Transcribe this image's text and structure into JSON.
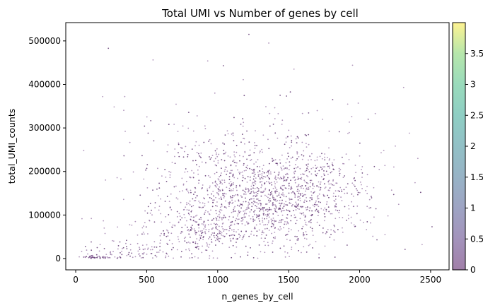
{
  "chart_data": {
    "type": "scatter",
    "title": "Total UMI vs Number of genes by cell",
    "xlabel": "n_genes_by_cell",
    "ylabel": "total_UMI_counts",
    "xlim": [
      -70,
      2630
    ],
    "ylim": [
      -26000,
      542000
    ],
    "xticks": [
      0,
      500,
      1000,
      1500,
      2000,
      2500
    ],
    "xtick_labels": [
      "0",
      "500",
      "1000",
      "1500",
      "2000",
      "2500"
    ],
    "yticks": [
      0,
      100000,
      200000,
      300000,
      400000,
      500000
    ],
    "ytick_labels": [
      "0",
      "100000",
      "200000",
      "300000",
      "400000",
      "500000"
    ],
    "grid": false,
    "colorbar": {
      "colormap": "viridis",
      "alpha": 0.5,
      "range": [
        0,
        4
      ],
      "ticks": [
        0,
        0.5,
        1,
        1.5,
        2,
        2.5,
        3,
        3.5
      ],
      "tick_labels": [
        "0",
        "0.5",
        "1",
        "1.5",
        "2",
        "2.5",
        "3",
        "3.5"
      ]
    },
    "point_color": "#7b4f8e",
    "outliers": [
      {
        "x": 230,
        "y": 483000
      },
      {
        "x": 1220,
        "y": 515000
      },
      {
        "x": 1360,
        "y": 495000
      },
      {
        "x": 190,
        "y": 372000
      },
      {
        "x": 930,
        "y": 454000
      },
      {
        "x": 1040,
        "y": 443000
      },
      {
        "x": 1950,
        "y": 444000
      },
      {
        "x": 1180,
        "y": 411000
      },
      {
        "x": 2310,
        "y": 393000
      },
      {
        "x": 1990,
        "y": 357000
      },
      {
        "x": 2110,
        "y": 333000
      },
      {
        "x": 510,
        "y": 288000
      },
      {
        "x": 2350,
        "y": 288000
      },
      {
        "x": 2170,
        "y": 248000
      },
      {
        "x": 2410,
        "y": 230000
      },
      {
        "x": 2430,
        "y": 152000
      },
      {
        "x": 2510,
        "y": 73000
      },
      {
        "x": 2320,
        "y": 21000
      },
      {
        "x": 2440,
        "y": 32000
      },
      {
        "x": 340,
        "y": 236000
      },
      {
        "x": 590,
        "y": 120000
      },
      {
        "x": 420,
        "y": 85000
      },
      {
        "x": 110,
        "y": 92000
      },
      {
        "x": 2240,
        "y": 147000
      },
      {
        "x": 980,
        "y": 380000
      },
      {
        "x": 1440,
        "y": 375000
      },
      {
        "x": 1810,
        "y": 365000
      },
      {
        "x": 2060,
        "y": 320000
      }
    ],
    "clusters": [
      {
        "n": 850,
        "mx": 1340,
        "sx": 280,
        "my": 130000,
        "sy": 55000
      },
      {
        "n": 420,
        "mx": 1100,
        "sx": 360,
        "my": 175000,
        "sy": 80000
      },
      {
        "n": 240,
        "mx": 850,
        "sx": 170,
        "my": 62000,
        "sy": 30000
      },
      {
        "n": 260,
        "mx": 1700,
        "sx": 220,
        "my": 170000,
        "sy": 65000
      },
      {
        "n": 90,
        "mx": 420,
        "sx": 190,
        "my": 18000,
        "sy": 14000
      },
      {
        "n": 40,
        "mx": 120,
        "sx": 70,
        "my": 3000,
        "sy": 3000
      }
    ]
  }
}
